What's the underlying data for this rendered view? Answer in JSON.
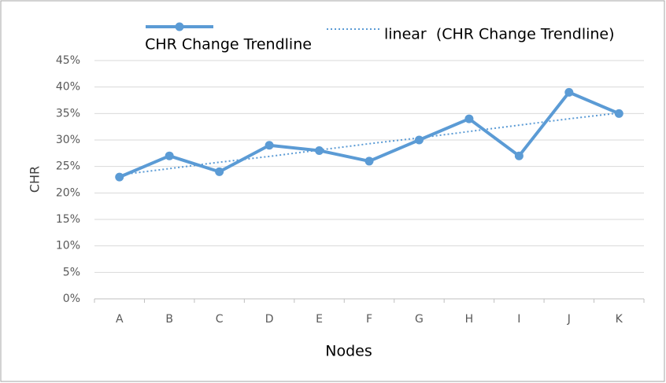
{
  "chart_data": {
    "type": "line",
    "x_label": "Nodes",
    "y_label": "CHR",
    "categories": [
      "A",
      "B",
      "C",
      "D",
      "E",
      "F",
      "G",
      "H",
      "I",
      "J",
      "K"
    ],
    "series": [
      {
        "name": "CHR Change Trendline",
        "color": "#5b9bd5",
        "line_style": "solid",
        "marker": true,
        "values": [
          23,
          27,
          24,
          29,
          28,
          26,
          30,
          34,
          27,
          39,
          35
        ]
      },
      {
        "name": "linear  (CHR Change Trendline)",
        "color": "#5b9bd5",
        "line_style": "dotted",
        "marker": false,
        "values": [
          23.4,
          24.6,
          25.8,
          26.9,
          28.1,
          29.3,
          30.4,
          31.6,
          32.8,
          34.0,
          35.1
        ]
      }
    ],
    "ylim": [
      0,
      45
    ],
    "yticks": [
      {
        "value": 0,
        "label": "0%"
      },
      {
        "value": 5,
        "label": "5%"
      },
      {
        "value": 10,
        "label": "10%"
      },
      {
        "value": 15,
        "label": "15%"
      },
      {
        "value": 20,
        "label": "20%"
      },
      {
        "value": 25,
        "label": "25%"
      },
      {
        "value": 30,
        "label": "30%"
      },
      {
        "value": 35,
        "label": "35%"
      },
      {
        "value": 40,
        "label": "40%"
      },
      {
        "value": 45,
        "label": "45%"
      }
    ],
    "grid": true,
    "legend": "top"
  }
}
